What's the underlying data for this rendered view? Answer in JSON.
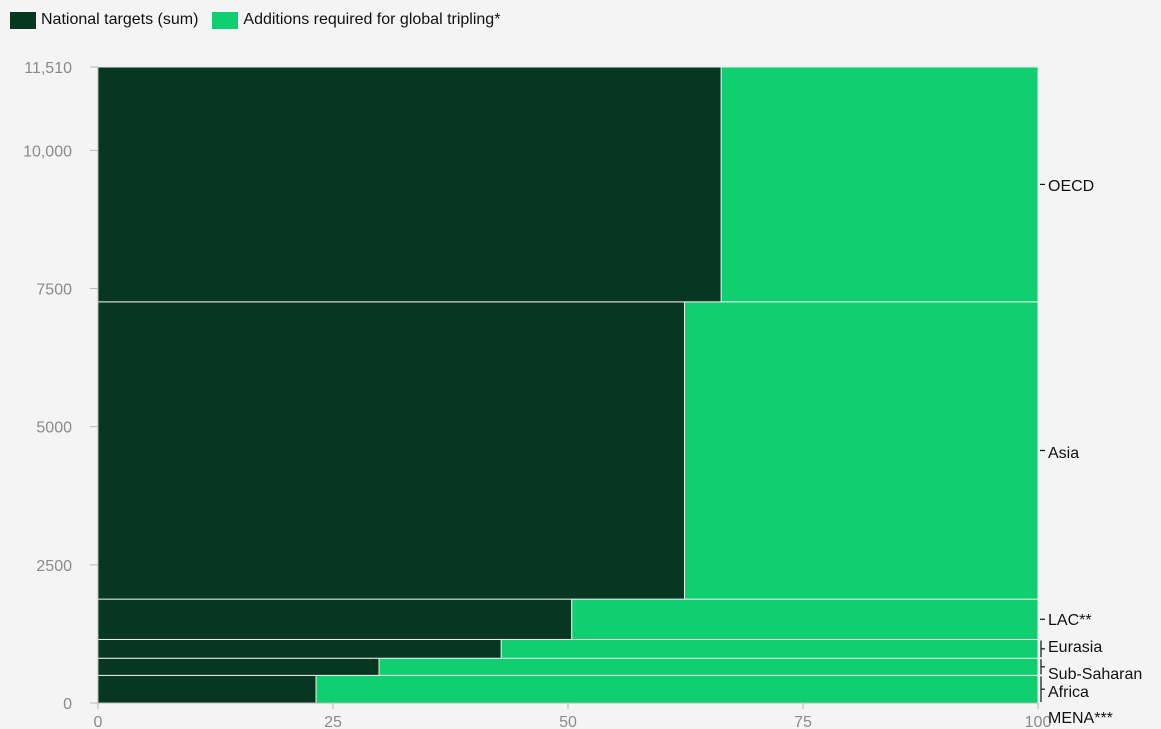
{
  "legend": {
    "national_label": "National targets (sum)",
    "additions_label": "Additions required for global tripling*"
  },
  "colors": {
    "national": "#073621",
    "additions": "#10cf70",
    "axis": "#b8b8b8",
    "divider": "#eaeaea"
  },
  "chart_data": {
    "type": "mosaic",
    "title": "",
    "xlabel": "",
    "ylabel": "",
    "xlim": [
      0,
      100
    ],
    "ylim": [
      0,
      11510
    ],
    "x_ticks": [
      "0",
      "25",
      "50",
      "75",
      "100"
    ],
    "y_ticks": [
      {
        "value": 0,
        "label": "0"
      },
      {
        "value": 2500,
        "label": "2500"
      },
      {
        "value": 5000,
        "label": "5000"
      },
      {
        "value": 7500,
        "label": "7500"
      },
      {
        "value": 10000,
        "label": "10,000"
      },
      {
        "value": 11510,
        "label": "11,510"
      }
    ],
    "series": [
      {
        "name": "National targets (sum)"
      },
      {
        "name": "Additions required for global tripling*"
      }
    ],
    "regions": [
      {
        "name": "MENA***",
        "lines": [
          "MENA***"
        ],
        "y0": 0,
        "y1": 500,
        "national_pct": 23.2
      },
      {
        "name": "Sub-Saharan Africa",
        "lines": [
          "Sub-Saharan",
          "Africa"
        ],
        "y0": 500,
        "y1": 810,
        "national_pct": 29.9
      },
      {
        "name": "Eurasia",
        "lines": [
          "Eurasia"
        ],
        "y0": 810,
        "y1": 1150,
        "national_pct": 42.9
      },
      {
        "name": "LAC**",
        "lines": [
          "LAC**"
        ],
        "y0": 1150,
        "y1": 1880,
        "national_pct": 50.4
      },
      {
        "name": "Asia",
        "lines": [
          "Asia"
        ],
        "y0": 1880,
        "y1": 7260,
        "national_pct": 62.4
      },
      {
        "name": "OECD",
        "lines": [
          "OECD"
        ],
        "y0": 7260,
        "y1": 11510,
        "national_pct": 66.3
      }
    ]
  }
}
